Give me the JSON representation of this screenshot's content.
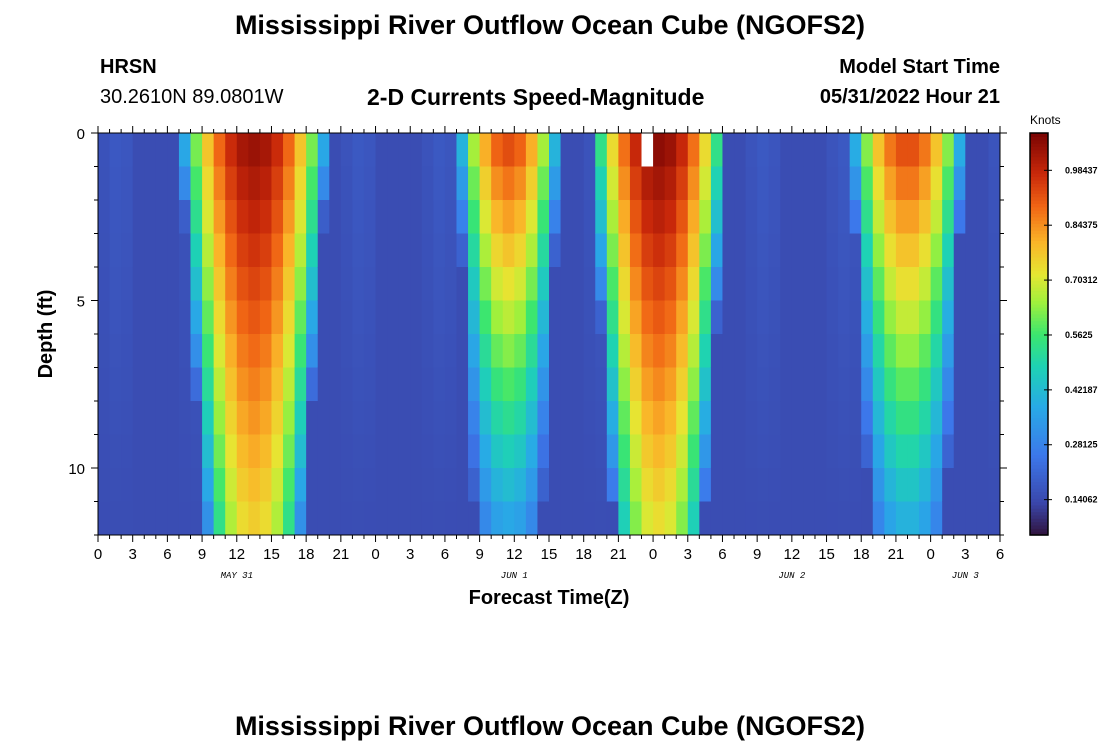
{
  "header": {
    "title": "Mississippi River Outflow Ocean Cube (NGOFS2)",
    "station": "HRSN",
    "coords": "30.2610N  89.0801W",
    "subtitle": "2-D Currents Speed-Magnitude",
    "model_start_label": "Model Start Time",
    "model_start_value": "05/31/2022 Hour 21"
  },
  "footer": {
    "title": "Mississippi River Outflow Ocean Cube (NGOFS2)"
  },
  "chart_data": {
    "type": "heatmap",
    "title": "2-D Currents Speed-Magnitude",
    "xlabel": "Forecast Time(Z)",
    "ylabel": "Depth (ft)",
    "x_start_hour_label": "0",
    "x_tick_labels": [
      "0",
      "3",
      "6",
      "9",
      "12",
      "15",
      "18",
      "21",
      "0",
      "3",
      "6",
      "9",
      "12",
      "15",
      "18",
      "21",
      "0",
      "3",
      "6",
      "9",
      "12",
      "15",
      "18",
      "21",
      "0",
      "3",
      "6"
    ],
    "x_date_labels": [
      {
        "label": "MAY 31",
        "at_hour": 12
      },
      {
        "label": "JUN 1",
        "at_hour": 36
      },
      {
        "label": "JUN 2",
        "at_hour": 60
      },
      {
        "label": "JUN 3",
        "at_hour": 75
      }
    ],
    "xlim_hours": [
      0,
      78
    ],
    "ylim_ft": [
      0,
      12
    ],
    "y_tick_labels": [
      "0",
      "5",
      "10"
    ],
    "y_tick_values": [
      0,
      5,
      10
    ],
    "colorbar": {
      "unit_label": "Knots",
      "range": [
        0.05,
        1.08
      ],
      "tick_labels": [
        "0.98437",
        "0.84375",
        "0.70312",
        "0.5625",
        "0.42187",
        "0.28125",
        "0.14062"
      ],
      "tick_values": [
        0.98437,
        0.84375,
        0.70312,
        0.5625,
        0.42187,
        0.28125,
        0.14062
      ]
    },
    "peaks": [
      {
        "center_hour": 13.5,
        "half_width_hours": 6.5,
        "surface_speed": 1.05,
        "bottom_speed": 0.75
      },
      {
        "center_hour": 35.5,
        "half_width_hours": 4.5,
        "surface_speed": 0.95,
        "bottom_speed": 0.35
      },
      {
        "center_hour": 48.5,
        "half_width_hours": 6.0,
        "surface_speed": 1.07,
        "bottom_speed": 0.72
      },
      {
        "center_hour": 70.0,
        "half_width_hours": 5.0,
        "surface_speed": 0.95,
        "bottom_speed": 0.38
      }
    ],
    "background_speed": 0.15,
    "missing_cell": {
      "hour": 47,
      "depth_ft": 0
    }
  }
}
